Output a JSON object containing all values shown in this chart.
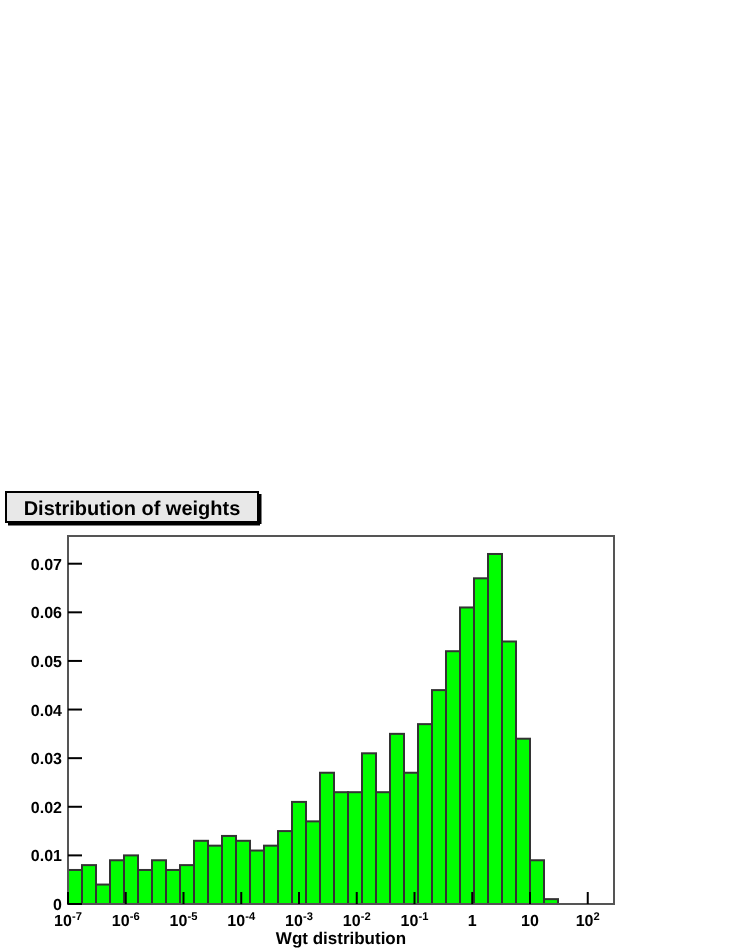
{
  "chart_data": {
    "type": "histogram",
    "title": "Distribution of weights",
    "xlabel": "Wgt distribution",
    "bins": [
      1e-07,
      1.748e-07,
      3.054e-07,
      5.337e-07,
      9.326e-07,
      1.63e-06,
      2.848e-06,
      4.977e-06,
      8.697e-06,
      1.52e-05,
      2.656e-05,
      4.642e-05,
      8.111e-05,
      0.0001418,
      0.0002477,
      0.0004329,
      0.0007565,
      0.001322,
      0.00231,
      0.004037,
      0.007055,
      0.01233,
      0.02154,
      0.03765,
      0.06579,
      0.115,
      0.2009,
      0.3511,
      0.6136,
      1.072,
      1.874,
      3.275,
      5.722,
      10,
      17.48,
      30.54,
      53.37,
      93.26,
      163.0,
      284.8
    ],
    "values": [
      0.007,
      0.008,
      0.004,
      0.009,
      0.01,
      0.007,
      0.009,
      0.007,
      0.008,
      0.013,
      0.012,
      0.014,
      0.013,
      0.011,
      0.012,
      0.015,
      0.021,
      0.017,
      0.027,
      0.023,
      0.023,
      0.031,
      0.023,
      0.035,
      0.027,
      0.037,
      0.044,
      0.052,
      0.061,
      0.067,
      0.072,
      0.054,
      0.034,
      0.009,
      0.001,
      0,
      0,
      0,
      0
    ],
    "color": "#00ff00",
    "log": "x",
    "xlim": [
      1e-07,
      284.8
    ],
    "ylim": [
      0,
      0.0757
    ],
    "xticks": [
      {
        "value": 1e-07,
        "label": "10$^{-7}$"
      },
      {
        "value": 1e-06,
        "label": "10$^{-6}$"
      },
      {
        "value": 1e-05,
        "label": "10$^{-5}$"
      },
      {
        "value": 0.0001,
        "label": "10$^{-4}$"
      },
      {
        "value": 0.001,
        "label": "10$^{-3}$"
      },
      {
        "value": 0.01,
        "label": "10$^{-2}$"
      },
      {
        "value": 0.1,
        "label": "10$^{-1}$"
      },
      1,
      10,
      {
        "value": 100,
        "label": "10$^{2}$"
      }
    ],
    "yticks": [
      0,
      0.01,
      0.02,
      0.03,
      0.04,
      0.05,
      0.06,
      0.07
    ],
    "grid": false
  }
}
